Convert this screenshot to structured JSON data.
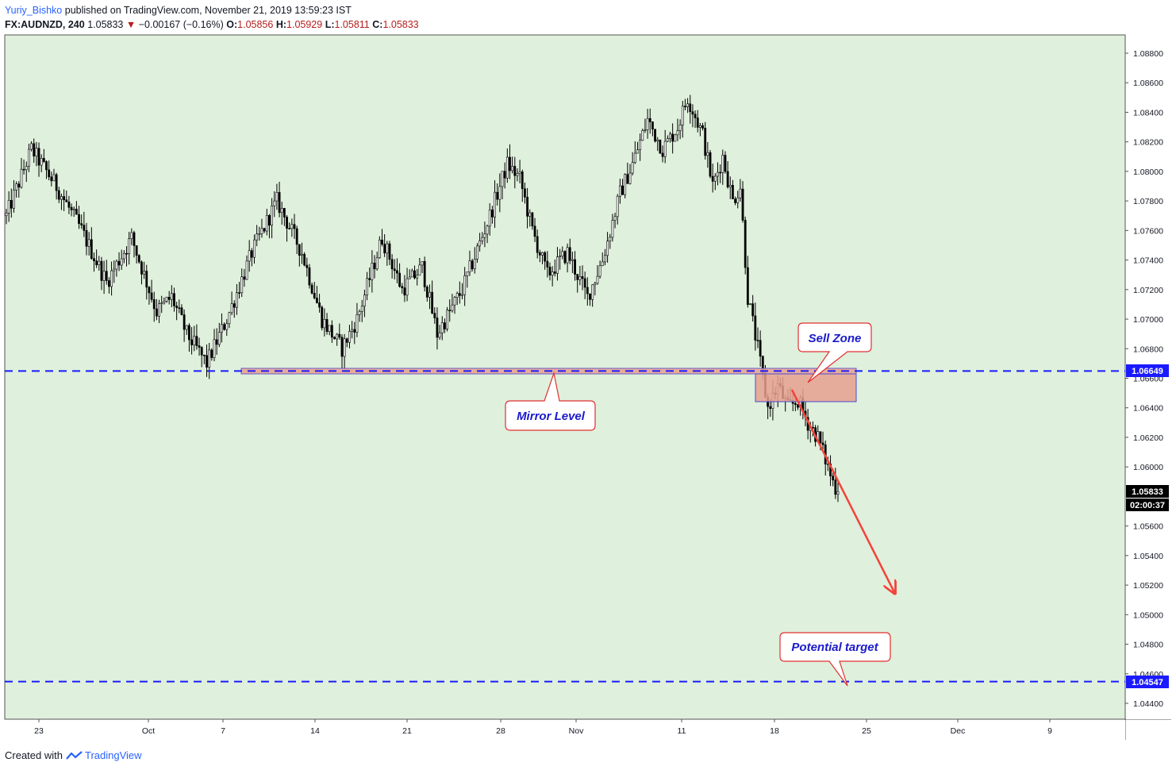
{
  "header": {
    "author": "Yuriy_Bishko",
    "published_text": "published on TradingView.com, November 21, 2019 13:59:23 IST",
    "symbol": "FX:AUDNZD, 240",
    "last_price": "1.05833",
    "change_arrow": "▼",
    "change": "−0.00167 (−0.16%)",
    "open_label": "O:",
    "open": "1.05856",
    "high_label": "H:",
    "high": "1.05929",
    "low_label": "L:",
    "low": "1.05811",
    "close_label": "C:",
    "close": "1.05833"
  },
  "colors": {
    "background": "#dff0dc",
    "candle": "#000000",
    "level_line": "#1a1aff",
    "zone_fill": "#e8a08f",
    "arrow": "#f4433c",
    "callout_border": "#e03131",
    "callout_text": "#1a1acc"
  },
  "chart_data": {
    "type": "candlestick",
    "symbol": "FX:AUDNZD",
    "interval": "240",
    "ylim": [
      1.043,
      1.089
    ],
    "y_ticks": [
      "1.08800",
      "1.08600",
      "1.08400",
      "1.08200",
      "1.08000",
      "1.07800",
      "1.07600",
      "1.07400",
      "1.07200",
      "1.07000",
      "1.06800",
      "1.06600",
      "1.06400",
      "1.06200",
      "1.06000",
      "1.05600",
      "1.05400",
      "1.05200",
      "1.05000",
      "1.04800",
      "1.04600",
      "1.04400"
    ],
    "x_ticks": [
      "23",
      "Oct",
      "7",
      "14",
      "21",
      "28",
      "Nov",
      "11",
      "18",
      "25",
      "Dec",
      "9"
    ],
    "price_labels": {
      "mirror_level": "1.06649",
      "current_price": "1.05833",
      "countdown": "02:00:37",
      "target": "1.04547"
    },
    "levels": [
      {
        "value": 1.06649,
        "style": "dashed"
      },
      {
        "value": 1.04547,
        "style": "dashed"
      }
    ],
    "price_path": [
      [
        0,
        1.077
      ],
      [
        10,
        1.0815
      ],
      [
        20,
        1.079
      ],
      [
        30,
        1.076
      ],
      [
        40,
        1.0725
      ],
      [
        50,
        1.0755
      ],
      [
        60,
        1.0705
      ],
      [
        66,
        1.0715
      ],
      [
        72,
        1.069
      ],
      [
        80,
        1.067
      ],
      [
        88,
        1.07
      ],
      [
        98,
        1.0745
      ],
      [
        108,
        1.078
      ],
      [
        118,
        1.0745
      ],
      [
        126,
        1.07
      ],
      [
        134,
        1.068
      ],
      [
        140,
        1.07
      ],
      [
        150,
        1.0755
      ],
      [
        158,
        1.072
      ],
      [
        166,
        1.0735
      ],
      [
        172,
        1.069
      ],
      [
        182,
        1.072
      ],
      [
        192,
        1.0765
      ],
      [
        200,
        1.0805
      ],
      [
        205,
        1.0795
      ],
      [
        210,
        1.076
      ],
      [
        216,
        1.073
      ],
      [
        224,
        1.0745
      ],
      [
        232,
        1.0715
      ],
      [
        238,
        1.074
      ],
      [
        245,
        1.0785
      ],
      [
        250,
        1.0805
      ],
      [
        256,
        1.0835
      ],
      [
        262,
        1.0815
      ],
      [
        268,
        1.083
      ],
      [
        272,
        1.085
      ],
      [
        278,
        1.0825
      ],
      [
        282,
        1.079
      ],
      [
        286,
        1.081
      ],
      [
        290,
        1.078
      ],
      [
        293,
        1.079
      ],
      [
        296,
        1.0715
      ],
      [
        300,
        1.068
      ],
      [
        304,
        1.064
      ],
      [
        308,
        1.0655
      ],
      [
        312,
        1.064
      ],
      [
        316,
        1.0645
      ],
      [
        320,
        1.063
      ],
      [
        324,
        1.062
      ],
      [
        328,
        1.06
      ],
      [
        330,
        1.059
      ],
      [
        332,
        1.0583
      ]
    ]
  },
  "annotations": {
    "sell_zone": "Sell Zone",
    "mirror_level": "Mirror Level",
    "potential_target": "Potential target"
  },
  "footer": {
    "created_with": "Created with",
    "brand": "TradingView"
  }
}
